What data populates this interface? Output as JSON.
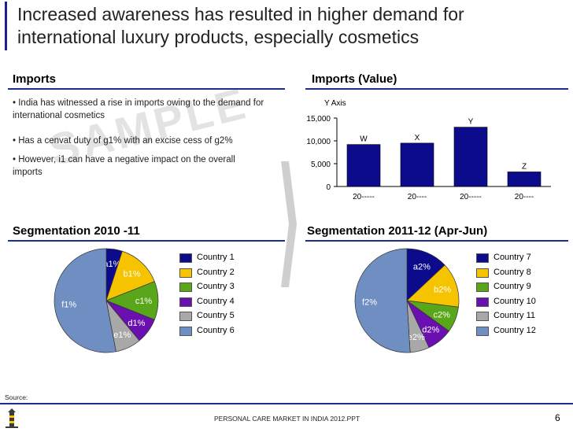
{
  "title": "Increased awareness has resulted in higher demand for international luxury products, especially cosmetics",
  "imports": {
    "heading": "Imports",
    "bullets": [
      "India has witnessed a rise in imports owing to the demand for international cosmetics",
      "Has a cenvat duty of g1% with an excise cess of g2%",
      "However, i1 can have a negative impact on the overall imports"
    ],
    "watermark": "SAMPLE"
  },
  "imports_value_heading": "Imports (Value)",
  "seg1_heading": "Segmentation 2010 -11",
  "seg2_heading": "Segmentation 2011-12 (Apr-Jun)",
  "source_label": "Source:",
  "footer_text": "PERSONAL CARE MARKET IN INDIA 2012.PPT",
  "page_number": "6",
  "colors": {
    "navy": "#0b0b8c",
    "yellow": "#f5c300",
    "green": "#5aa61a",
    "purple": "#6a0fb0",
    "gray": "#a8a8a8",
    "steel": "#6f8fc2",
    "accent": "#1e2f8a"
  },
  "chart_data": [
    {
      "type": "bar",
      "title": "Imports (Value)",
      "ylabel": "Y Axis",
      "categories": [
        "20-----",
        "20----",
        "20-----",
        "20----"
      ],
      "values": [
        9200,
        9500,
        13000,
        3200
      ],
      "data_labels": [
        "W",
        "X",
        "Y",
        "Z"
      ],
      "ylim": [
        0,
        15000
      ],
      "yticks": [
        "0",
        "5,000",
        "10,000",
        "15,000"
      ],
      "ytick_values": [
        0,
        5000,
        10000,
        15000
      ]
    },
    {
      "type": "pie",
      "title": "Segmentation 2010 -11",
      "labels": [
        "Country 1",
        "Country 2",
        "Country 3",
        "Country 4",
        "Country 5",
        "Country 6"
      ],
      "slice_labels": [
        "a1%",
        "b1%",
        "c1%",
        "d1%",
        "e1%",
        "f1%"
      ],
      "values": [
        5,
        14,
        12,
        8,
        8,
        53
      ],
      "colors": [
        "#0b0b8c",
        "#f5c300",
        "#5aa61a",
        "#6a0fb0",
        "#a8a8a8",
        "#6f8fc2"
      ]
    },
    {
      "type": "pie",
      "title": "Segmentation 2011-12 (Apr-Jun)",
      "labels": [
        "Country 7",
        "Country 8",
        "Country 9",
        "Country 10",
        "Country 11",
        "Country 12"
      ],
      "slice_labels": [
        "a2%",
        "b2%",
        "c2%",
        "d2%",
        "e2%",
        "f2%"
      ],
      "values": [
        13,
        14,
        8,
        8,
        6,
        51
      ],
      "colors": [
        "#0b0b8c",
        "#f5c300",
        "#5aa61a",
        "#6a0fb0",
        "#a8a8a8",
        "#6f8fc2"
      ]
    }
  ]
}
